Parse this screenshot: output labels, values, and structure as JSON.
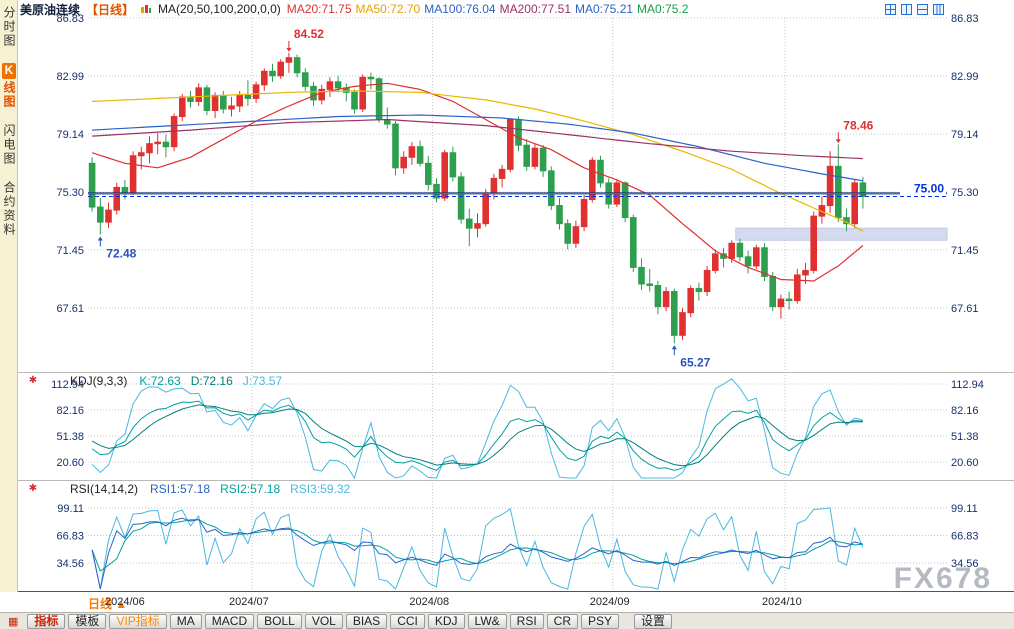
{
  "header": {
    "title": "美原油连续",
    "period": "【日线】",
    "ma_label": "MA(20,50,100,200,0,0)",
    "ma_values": [
      {
        "text": "MA20:71.75",
        "color": "#e03030"
      },
      {
        "text": "MA50:72.70",
        "color": "#e8a000"
      },
      {
        "text": "MA100:76.04",
        "color": "#2a62c9"
      },
      {
        "text": "MA200:77.51",
        "color": "#993366"
      },
      {
        "text": "MA0:75.21",
        "color": "#2a62c9"
      },
      {
        "text": "MA0:75.2",
        "color": "#11a04a"
      }
    ]
  },
  "sidebar": {
    "items": [
      {
        "label": "分时图",
        "active": false
      },
      {
        "label": "K线图",
        "active": true
      },
      {
        "label": "闪电图",
        "active": false
      },
      {
        "label": "合约资料",
        "active": false
      }
    ]
  },
  "kdj": {
    "icon": "✱",
    "name": "KDJ(9,3,3)",
    "params": [
      {
        "text": "K:72.63",
        "color": "#00a0a0"
      },
      {
        "text": "D:72.16",
        "color": "#008080"
      },
      {
        "text": "J:73.57",
        "color": "#4ab8e0"
      }
    ]
  },
  "rsi": {
    "icon": "✱",
    "name": "RSI(14,14,2)",
    "params": [
      {
        "text": "RSI1:57.18",
        "color": "#2a62c9"
      },
      {
        "text": "RSI2:57.18",
        "color": "#00a0a0"
      },
      {
        "text": "RSI3:59.32",
        "color": "#4ab8e0"
      }
    ]
  },
  "bottom": {
    "period_label": "日线",
    "period_arrow": "▲",
    "panel_icon": "▦",
    "tabs": [
      {
        "text": "指标",
        "color": "#cc2200"
      },
      {
        "text": "模板",
        "color": "#222222"
      },
      {
        "text": "VIP指标",
        "color": "#ff8800"
      },
      {
        "text": "MA",
        "color": "#222222"
      },
      {
        "text": "MACD",
        "color": "#222222"
      },
      {
        "text": "BOLL",
        "color": "#222222"
      },
      {
        "text": "VOL",
        "color": "#222222"
      },
      {
        "text": "BIAS",
        "color": "#222222"
      },
      {
        "text": "CCI",
        "color": "#222222"
      },
      {
        "text": "KDJ",
        "color": "#222222"
      },
      {
        "text": "LW&",
        "color": "#222222"
      },
      {
        "text": "RSI",
        "color": "#222222"
      },
      {
        "text": "CR",
        "color": "#222222"
      },
      {
        "text": "PSY",
        "color": "#222222"
      },
      {
        "text": "设置",
        "color": "#222222"
      }
    ]
  },
  "watermark": "FX678",
  "chart_data": {
    "type": "candlestick",
    "symbol": "美原油连续",
    "period": "日线",
    "up_color": "#e03030",
    "down_color": "#2e9e4f",
    "yticks": [
      86.83,
      82.99,
      79.14,
      75.3,
      71.45,
      67.61
    ],
    "month_ticks": [
      {
        "label": "2024/06",
        "index": 0
      },
      {
        "label": "2024/07",
        "index": 20
      },
      {
        "label": "2024/08",
        "index": 42
      },
      {
        "label": "2024/09",
        "index": 64
      },
      {
        "label": "2024/10",
        "index": 85
      }
    ],
    "candles": [
      [
        77.2,
        77.6,
        74.0,
        74.3
      ],
      [
        74.3,
        74.9,
        72.48,
        73.3
      ],
      [
        73.3,
        74.6,
        72.9,
        74.1
      ],
      [
        74.1,
        75.9,
        73.8,
        75.6
      ],
      [
        75.6,
        76.1,
        74.8,
        75.2
      ],
      [
        75.2,
        78.0,
        75.1,
        77.7
      ],
      [
        77.7,
        78.3,
        76.8,
        77.9
      ],
      [
        77.9,
        79.0,
        77.2,
        78.5
      ],
      [
        78.5,
        79.2,
        77.8,
        78.6
      ],
      [
        78.6,
        79.1,
        77.6,
        78.3
      ],
      [
        78.3,
        80.5,
        78.0,
        80.3
      ],
      [
        80.3,
        81.8,
        80.0,
        81.6
      ],
      [
        81.6,
        82.0,
        80.9,
        81.3
      ],
      [
        81.3,
        82.5,
        81.0,
        82.2
      ],
      [
        82.2,
        82.4,
        80.4,
        80.7
      ],
      [
        80.7,
        81.9,
        80.2,
        81.7
      ],
      [
        81.7,
        82.0,
        80.5,
        80.8
      ],
      [
        80.8,
        81.6,
        80.3,
        81.0
      ],
      [
        81.0,
        82.0,
        80.6,
        81.7
      ],
      [
        81.7,
        82.7,
        81.0,
        81.5
      ],
      [
        81.5,
        82.6,
        81.2,
        82.4
      ],
      [
        82.4,
        83.5,
        82.0,
        83.3
      ],
      [
        83.3,
        83.8,
        82.6,
        83.0
      ],
      [
        83.0,
        84.1,
        82.8,
        83.9
      ],
      [
        83.9,
        84.52,
        83.2,
        84.2
      ],
      [
        84.2,
        84.4,
        82.9,
        83.2
      ],
      [
        83.2,
        83.5,
        82.0,
        82.3
      ],
      [
        82.3,
        82.6,
        81.0,
        81.4
      ],
      [
        81.4,
        82.4,
        81.1,
        82.1
      ],
      [
        82.1,
        82.9,
        81.6,
        82.6
      ],
      [
        82.6,
        83.0,
        81.9,
        82.2
      ],
      [
        82.2,
        82.5,
        81.3,
        81.9
      ],
      [
        81.9,
        82.1,
        80.5,
        80.8
      ],
      [
        80.8,
        83.1,
        80.6,
        82.9
      ],
      [
        82.9,
        83.2,
        82.1,
        82.8
      ],
      [
        82.8,
        82.9,
        79.9,
        80.1
      ],
      [
        80.1,
        80.9,
        79.5,
        79.8
      ],
      [
        79.8,
        80.0,
        76.4,
        76.9
      ],
      [
        76.9,
        78.0,
        76.5,
        77.6
      ],
      [
        77.6,
        78.6,
        77.1,
        78.3
      ],
      [
        78.3,
        78.7,
        77.0,
        77.2
      ],
      [
        77.2,
        77.7,
        75.4,
        75.8
      ],
      [
        75.8,
        76.2,
        74.6,
        74.9
      ],
      [
        74.9,
        78.1,
        74.7,
        77.9
      ],
      [
        77.9,
        78.3,
        76.0,
        76.3
      ],
      [
        76.3,
        76.6,
        73.2,
        73.5
      ],
      [
        73.5,
        74.2,
        71.7,
        72.9
      ],
      [
        72.9,
        73.9,
        72.3,
        73.2
      ],
      [
        73.2,
        75.5,
        73.0,
        75.2
      ],
      [
        75.2,
        76.5,
        74.8,
        76.2
      ],
      [
        76.2,
        77.1,
        75.6,
        76.8
      ],
      [
        76.8,
        80.2,
        76.6,
        80.1
      ],
      [
        80.1,
        80.3,
        78.0,
        78.4
      ],
      [
        78.4,
        78.8,
        76.7,
        77.0
      ],
      [
        77.0,
        78.5,
        76.8,
        78.2
      ],
      [
        78.2,
        78.4,
        76.3,
        76.7
      ],
      [
        76.7,
        77.0,
        74.1,
        74.4
      ],
      [
        74.4,
        74.9,
        72.8,
        73.2
      ],
      [
        73.2,
        73.5,
        71.5,
        71.9
      ],
      [
        71.9,
        73.4,
        71.6,
        73.0
      ],
      [
        73.0,
        75.1,
        72.7,
        74.8
      ],
      [
        74.8,
        77.6,
        74.6,
        77.4
      ],
      [
        77.4,
        77.7,
        75.6,
        75.9
      ],
      [
        75.9,
        76.2,
        74.2,
        74.5
      ],
      [
        74.5,
        76.1,
        74.3,
        75.9
      ],
      [
        75.9,
        76.0,
        73.3,
        73.6
      ],
      [
        73.6,
        73.8,
        70.0,
        70.3
      ],
      [
        70.3,
        70.9,
        68.8,
        69.2
      ],
      [
        69.2,
        70.2,
        68.7,
        69.1
      ],
      [
        69.1,
        69.4,
        67.2,
        67.7
      ],
      [
        67.7,
        69.0,
        67.4,
        68.7
      ],
      [
        68.7,
        68.9,
        65.27,
        65.8
      ],
      [
        65.8,
        67.6,
        65.5,
        67.3
      ],
      [
        67.3,
        69.1,
        67.0,
        68.9
      ],
      [
        68.9,
        69.3,
        68.1,
        68.7
      ],
      [
        68.7,
        70.4,
        68.4,
        70.1
      ],
      [
        70.1,
        71.5,
        69.9,
        71.2
      ],
      [
        71.2,
        71.6,
        70.3,
        70.9
      ],
      [
        70.9,
        72.1,
        70.6,
        71.9
      ],
      [
        71.9,
        72.2,
        70.7,
        71.0
      ],
      [
        71.0,
        71.4,
        69.9,
        70.4
      ],
      [
        70.4,
        71.8,
        70.2,
        71.6
      ],
      [
        71.6,
        71.9,
        69.4,
        69.7
      ],
      [
        69.7,
        70.0,
        67.4,
        67.7
      ],
      [
        67.7,
        68.5,
        66.9,
        68.2
      ],
      [
        68.2,
        68.7,
        67.5,
        68.1
      ],
      [
        68.1,
        70.2,
        67.9,
        69.8
      ],
      [
        69.8,
        70.6,
        69.2,
        70.1
      ],
      [
        70.1,
        74.0,
        69.9,
        73.7
      ],
      [
        73.7,
        75.0,
        73.2,
        74.4
      ],
      [
        74.4,
        78.0,
        73.9,
        77.0
      ],
      [
        77.0,
        78.46,
        73.3,
        73.6
      ],
      [
        73.6,
        74.2,
        72.7,
        73.2
      ],
      [
        73.2,
        76.1,
        72.9,
        75.9
      ],
      [
        75.9,
        76.3,
        74.2,
        75.0
      ]
    ],
    "ma_lines": [
      {
        "name": "MA20",
        "color": "#e03030",
        "points": [
          [
            0,
            77.9
          ],
          [
            4,
            77.2
          ],
          [
            8,
            76.9
          ],
          [
            12,
            77.6
          ],
          [
            16,
            78.8
          ],
          [
            20,
            80.0
          ],
          [
            24,
            81.0
          ],
          [
            28,
            81.9
          ],
          [
            32,
            82.3
          ],
          [
            36,
            82.5
          ],
          [
            40,
            82.1
          ],
          [
            44,
            81.3
          ],
          [
            48,
            80.1
          ],
          [
            52,
            78.9
          ],
          [
            56,
            78.1
          ],
          [
            60,
            76.9
          ],
          [
            64,
            76.1
          ],
          [
            68,
            75.1
          ],
          [
            72,
            73.2
          ],
          [
            76,
            71.4
          ],
          [
            80,
            70.3
          ],
          [
            84,
            69.5
          ],
          [
            88,
            69.4
          ],
          [
            91,
            70.4
          ],
          [
            94,
            71.75
          ]
        ]
      },
      {
        "name": "MA50",
        "color": "#e8b800",
        "points": [
          [
            0,
            81.3
          ],
          [
            8,
            81.5
          ],
          [
            16,
            81.7
          ],
          [
            24,
            81.9
          ],
          [
            32,
            82.0
          ],
          [
            40,
            81.9
          ],
          [
            48,
            81.4
          ],
          [
            54,
            80.8
          ],
          [
            60,
            80.0
          ],
          [
            66,
            79.1
          ],
          [
            72,
            78.0
          ],
          [
            78,
            76.8
          ],
          [
            84,
            75.2
          ],
          [
            89,
            74.0
          ],
          [
            92,
            73.3
          ],
          [
            94,
            72.7
          ]
        ]
      },
      {
        "name": "MA100",
        "color": "#2a62c9",
        "points": [
          [
            0,
            79.4
          ],
          [
            10,
            79.7
          ],
          [
            20,
            80.0
          ],
          [
            30,
            80.3
          ],
          [
            40,
            80.4
          ],
          [
            50,
            80.2
          ],
          [
            58,
            79.8
          ],
          [
            66,
            79.2
          ],
          [
            74,
            78.3
          ],
          [
            82,
            77.2
          ],
          [
            89,
            76.5
          ],
          [
            94,
            76.04
          ]
        ]
      },
      {
        "name": "MA200",
        "color": "#993366",
        "points": [
          [
            0,
            79.0
          ],
          [
            12,
            79.4
          ],
          [
            24,
            79.9
          ],
          [
            36,
            80.1
          ],
          [
            48,
            79.7
          ],
          [
            58,
            79.1
          ],
          [
            68,
            78.5
          ],
          [
            78,
            78.0
          ],
          [
            87,
            77.7
          ],
          [
            94,
            77.51
          ]
        ]
      }
    ],
    "price_line": {
      "value": 75.0,
      "label": "75.00",
      "color": "#0033dd"
    },
    "h_lines": [
      {
        "value": 75.21,
        "color": "#16337a",
        "width": 2
      },
      {
        "value": 75.2,
        "color": "#11a04a",
        "width": 1
      }
    ],
    "box_annotation": {
      "start_index": 79,
      "price_top": 72.9,
      "price_bottom": 72.1,
      "fill": "#cdd5ec"
    },
    "annotations": [
      {
        "text": "84.52",
        "index": 24,
        "pos": "above",
        "color": "#e03030"
      },
      {
        "text": "72.48",
        "index": 1,
        "pos": "below",
        "color": "#2a52b8"
      },
      {
        "text": "78.46",
        "index": 91,
        "pos": "above",
        "color": "#e03030"
      },
      {
        "text": "65.27",
        "index": 71,
        "pos": "below",
        "color": "#2a52b8"
      }
    ],
    "indicators": {
      "kdj": {
        "label": "KDJ(9,3,3)",
        "k": 72.63,
        "d": 72.16,
        "j": 73.57,
        "yticks": [
          112.94,
          82.16,
          51.38,
          20.6
        ],
        "line_colors": [
          "#00a0a0",
          "#008080",
          "#4ab8e0"
        ]
      },
      "rsi": {
        "label": "RSI(14,14,2)",
        "rsi1": 57.18,
        "rsi2": 57.18,
        "rsi3": 59.32,
        "yticks": [
          99.11,
          66.83,
          34.56
        ],
        "line_colors": [
          "#2a62c9",
          "#00a0a0",
          "#4ab8e0"
        ]
      }
    }
  }
}
